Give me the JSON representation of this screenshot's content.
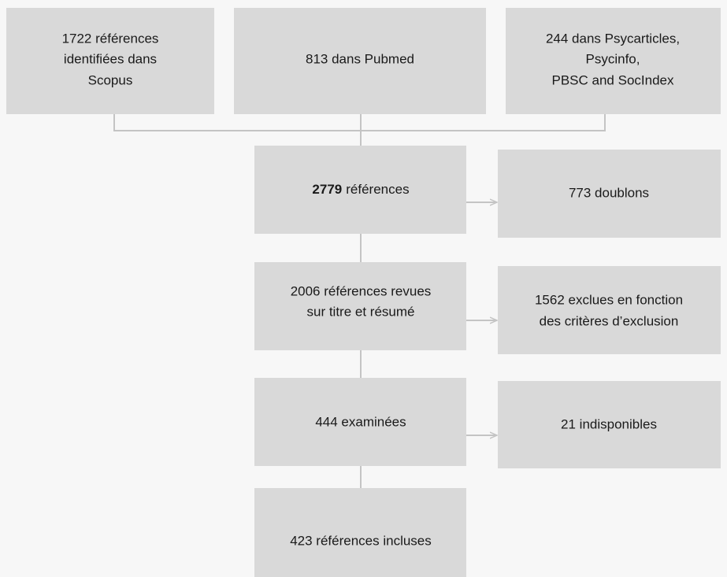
{
  "nodes": [
    {
      "lines": [
        "1722 références",
        "identifiées dans",
        "Scopus"
      ]
    },
    {
      "lines": [
        "813 dans Pubmed"
      ]
    },
    {
      "lines": [
        "244 dans Psycarticles,",
        "Psycinfo,",
        "PBSC and SocIndex"
      ]
    },
    {
      "bold": "2779",
      "text": "références"
    },
    {
      "lines": [
        "773 doublons"
      ]
    },
    {
      "lines": [
        "2006 références revues",
        "sur titre et résumé"
      ]
    },
    {
      "lines": [
        "1562 exclues en fonction",
        "des critères d’exclusion"
      ]
    },
    {
      "lines": [
        "444 examinées"
      ]
    },
    {
      "lines": [
        "21 indisponibles"
      ]
    },
    {
      "lines": [
        "423 références incluses"
      ]
    }
  ]
}
